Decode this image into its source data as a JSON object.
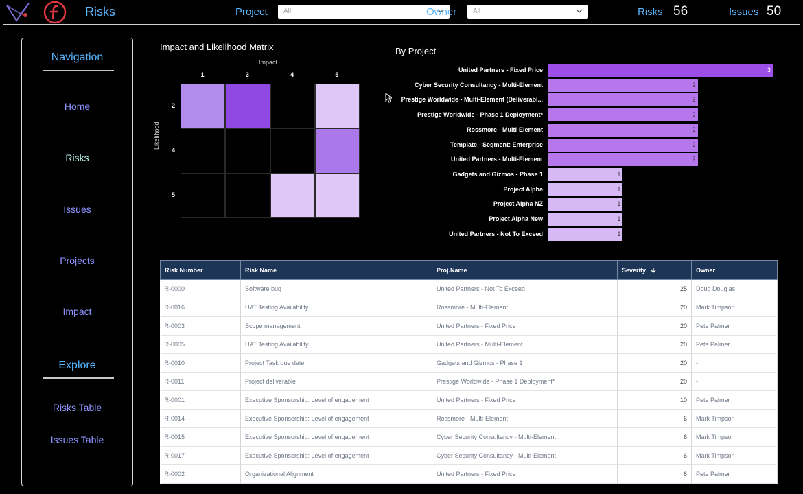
{
  "header": {
    "app_title": "Risks",
    "project_label": "Project",
    "project_value": "All",
    "owner_label": "Owner",
    "owner_value": "All",
    "risks_label": "Risks",
    "risks_count": "56",
    "issues_label": "Issues",
    "issues_count": "50"
  },
  "sidebar": {
    "nav_heading": "Navigation",
    "nav_items": [
      "Home",
      "Risks",
      "Issues",
      "Projects",
      "Impact"
    ],
    "active_item": "Risks",
    "explore_heading": "Explore",
    "explore_items": [
      "Risks Table",
      "Issues Table"
    ]
  },
  "matrix": {
    "title": "Impact and Likelihood Matrix",
    "x_axis_label": "Impact",
    "y_axis_label": "Likelihood",
    "impact_values": [
      "1",
      "3",
      "4",
      "5"
    ],
    "likelihood_values": [
      "2",
      "4",
      "5"
    ],
    "cells": [
      {
        "likelihood": "2",
        "impact": "1",
        "color": "#b38bec"
      },
      {
        "likelihood": "2",
        "impact": "3",
        "color": "#8f48e2"
      },
      {
        "likelihood": "2",
        "impact": "4",
        "color": "#000000"
      },
      {
        "likelihood": "2",
        "impact": "5",
        "color": "#dfc8f7"
      },
      {
        "likelihood": "4",
        "impact": "1",
        "color": "#000000"
      },
      {
        "likelihood": "4",
        "impact": "3",
        "color": "#000000"
      },
      {
        "likelihood": "4",
        "impact": "4",
        "color": "#000000"
      },
      {
        "likelihood": "4",
        "impact": "5",
        "color": "#ab78ea"
      },
      {
        "likelihood": "5",
        "impact": "1",
        "color": "#000000"
      },
      {
        "likelihood": "5",
        "impact": "3",
        "color": "#000000"
      },
      {
        "likelihood": "5",
        "impact": "4",
        "color": "#dfc8f7"
      },
      {
        "likelihood": "5",
        "impact": "5",
        "color": "#dfc8f7"
      }
    ]
  },
  "chart_data": {
    "type": "bar",
    "title": "By Project",
    "orientation": "horizontal",
    "categories": [
      "United Partners - Fixed Price",
      "Cyber Security Consultancy - Multi-Element",
      "Prestige Worldwide - Multi-Element (Deliverabl...",
      "Prestige Worldwide - Phase 1 Deployment*",
      "Rossmore - Multi-Element",
      "Template - Segment: Enterprise",
      "United Partners - Multi-Element",
      "Gadgets and Gizmos - Phase 1",
      "Project Alpha",
      "Project Alpha NZ",
      "Project Alpha New",
      "United Partners - Not To Exceed"
    ],
    "values": [
      3,
      2,
      2,
      2,
      2,
      2,
      2,
      1,
      1,
      1,
      1,
      1
    ],
    "value_labels": [
      "3",
      "2",
      "2",
      "2",
      "2",
      "2",
      "2",
      "1",
      "1",
      "1",
      "1",
      "1"
    ],
    "colors": {
      "3": "#9d4ee8",
      "2": "#b777ec",
      "1": "#d6b8f5"
    },
    "xlim": [
      0,
      3
    ]
  },
  "table": {
    "columns": [
      "Risk Number",
      "Risk Name",
      "Proj.Name",
      "Severity",
      "Owner"
    ],
    "sort_icon": "arrow-down-icon",
    "rows": [
      [
        "R-0000",
        "Software bug",
        "United Partners - Not To Exceed",
        "25",
        "Doug Douglas"
      ],
      [
        "R-0016",
        "UAT Testing Availability",
        "Rossmore - Multi-Element",
        "20",
        "Mark Timpson"
      ],
      [
        "R-0003",
        "Scope management",
        "United Partners - Fixed Price",
        "20",
        "Pete Palmer"
      ],
      [
        "R-0005",
        "UAT Testing Availability",
        "United Partners - Multi-Element",
        "20",
        "Pete Palmer"
      ],
      [
        "R-0010",
        "Project Task due date",
        "Gadgets and Gizmos - Phase 1",
        "20",
        "-"
      ],
      [
        "R-0011",
        "Project deliverable",
        "Prestige Worldwide - Phase 1 Deployment*",
        "20",
        "-"
      ],
      [
        "R-0001",
        "Executive Sponsorship: Level of engagement",
        "United Partners - Fixed Price",
        "10",
        "Pete Palmer"
      ],
      [
        "R-0014",
        "Executive Sponsorship: Level of engagement",
        "Rossmore - Multi-Element",
        "6",
        "Mark Timpson"
      ],
      [
        "R-0015",
        "Executive Sponsorship: Level of engagement",
        "Cyber Security Consultancy - Multi-Element",
        "6",
        "Mark Timpson"
      ],
      [
        "R-0017",
        "Executive Sponsorship: Level of engagement",
        "Cyber Security Consultancy - Multi-Element",
        "6",
        "Mark Timpson"
      ],
      [
        "R-0002",
        "Organizational Alignment",
        "United Partners - Fixed Price",
        "6",
        "Pete Palmer"
      ]
    ]
  }
}
